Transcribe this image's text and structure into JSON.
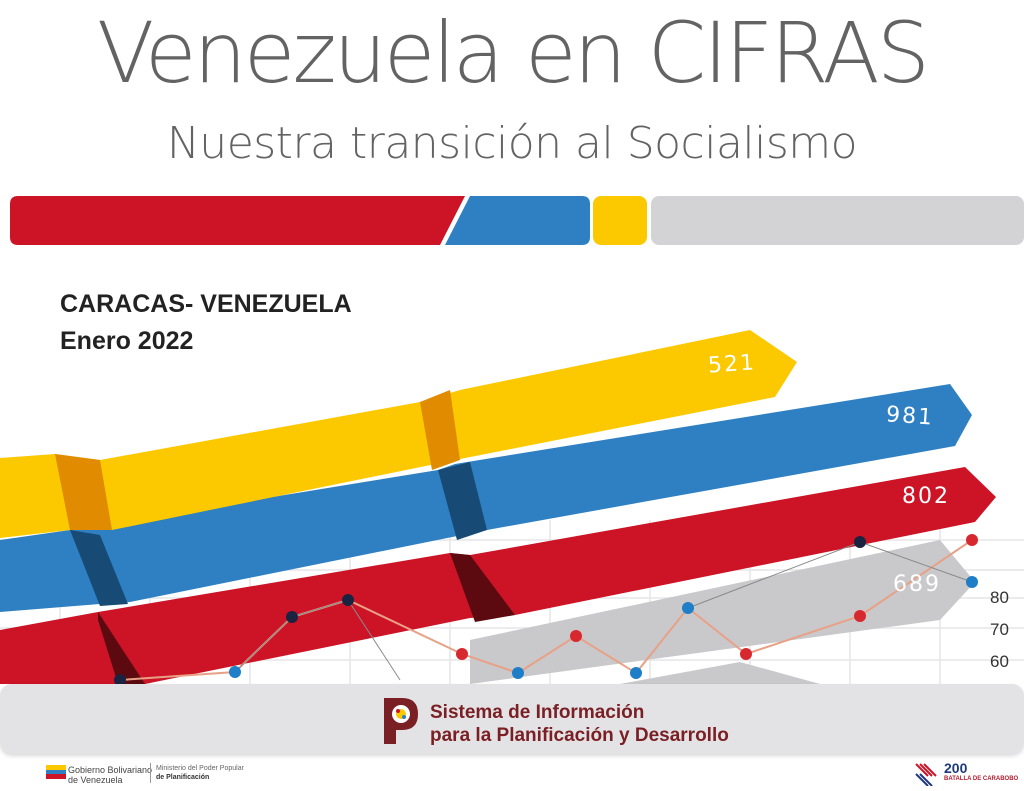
{
  "header": {
    "title": "Venezuela en CIFRAS",
    "subtitle": "Nuestra transición al Socialismo"
  },
  "location": {
    "city": "CARACAS- VENEZUELA",
    "date": "Enero 2022"
  },
  "bands": [
    {
      "label": "521",
      "color": "#fcc900"
    },
    {
      "label": "981",
      "color": "#2f80c3"
    },
    {
      "label": "802",
      "color": "#cc1426"
    },
    {
      "label": "689",
      "color": "#c9c9cc"
    }
  ],
  "axis_ticks": [
    "80",
    "70",
    "60"
  ],
  "footer": {
    "sip_line_1": "Sistema de Información",
    "sip_line_2": "para la Planificación y Desarrollo",
    "gov_line_1": "Gobierno Bolivariano",
    "gov_line_2": "de Venezuela",
    "ministry_line_1": "Ministerio del Poder Popular",
    "ministry_line_2": "de Planificación",
    "bicentenario_number": "200",
    "bicentenario_caption": "BATALLA DE CARABOBO"
  },
  "colors": {
    "red": "#cc1426",
    "blue": "#2f80c3",
    "yellow": "#fcc900",
    "gray": "#d3d3d6",
    "title_gray": "#636363",
    "logo_maroon": "#7a1f24"
  }
}
